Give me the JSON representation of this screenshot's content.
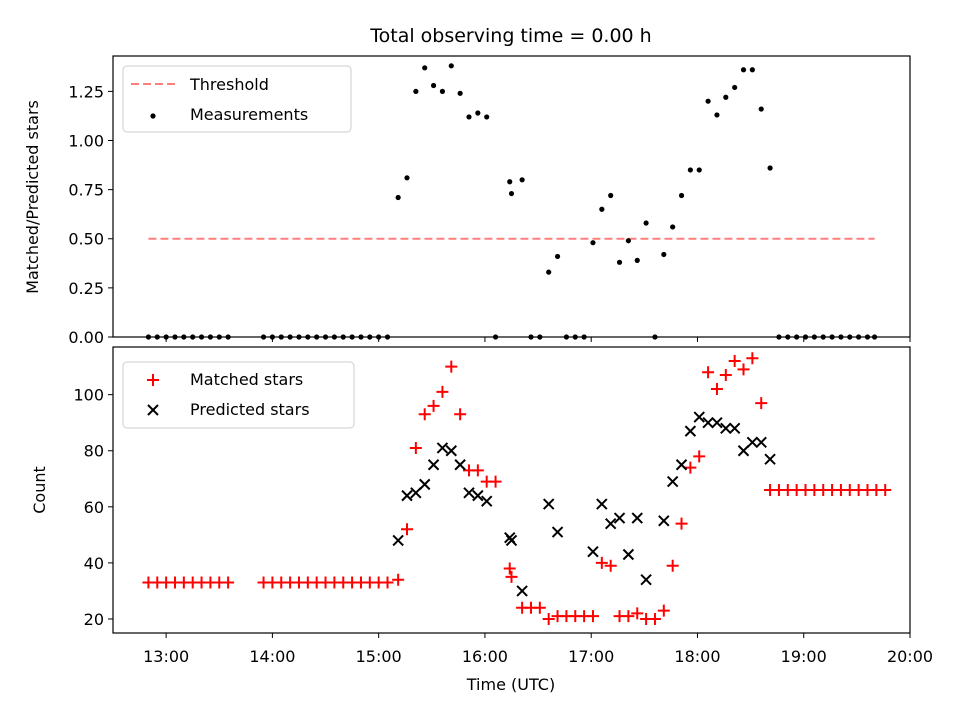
{
  "chart_data": [
    {
      "type": "scatter",
      "title": "Total observing time = 0.00 h",
      "xlabel": "",
      "ylabel": "Matched/Predicted stars",
      "ylim": [
        0,
        1.43
      ],
      "yticks": [
        "0.00",
        "0.25",
        "0.50",
        "0.75",
        "1.00",
        "1.25"
      ],
      "x_range": [
        "12:30",
        "20:00"
      ],
      "legend": {
        "placement": "top-left",
        "entries": [
          "Threshold",
          "Measurements"
        ]
      },
      "threshold": {
        "name": "Threshold",
        "value": 0.5,
        "x": [
          "12:50",
          "19:40"
        ],
        "color": "#ff7f7f",
        "style": "dashed"
      },
      "series": [
        {
          "name": "Measurements",
          "marker": "dot",
          "color": "#000000",
          "points": [
            [
              "12:50",
              0
            ],
            [
              "12:55",
              0
            ],
            [
              "13:00",
              0
            ],
            [
              "13:05",
              0
            ],
            [
              "13:10",
              0
            ],
            [
              "13:15",
              0
            ],
            [
              "13:20",
              0
            ],
            [
              "13:25",
              0
            ],
            [
              "13:30",
              0
            ],
            [
              "13:35",
              0
            ],
            [
              "13:55",
              0
            ],
            [
              "14:00",
              0
            ],
            [
              "14:05",
              0
            ],
            [
              "14:10",
              0
            ],
            [
              "14:15",
              0
            ],
            [
              "14:20",
              0
            ],
            [
              "14:25",
              0
            ],
            [
              "14:30",
              0
            ],
            [
              "14:35",
              0
            ],
            [
              "14:40",
              0
            ],
            [
              "14:45",
              0
            ],
            [
              "14:50",
              0
            ],
            [
              "14:55",
              0
            ],
            [
              "15:00",
              0
            ],
            [
              "15:05",
              0
            ],
            [
              "15:11",
              0.71
            ],
            [
              "15:16",
              0.81
            ],
            [
              "15:21",
              1.25
            ],
            [
              "15:26",
              1.37
            ],
            [
              "15:31",
              1.28
            ],
            [
              "15:36",
              1.25
            ],
            [
              "15:41",
              1.38
            ],
            [
              "15:46",
              1.24
            ],
            [
              "15:51",
              1.12
            ],
            [
              "15:56",
              1.14
            ],
            [
              "16:01",
              1.12
            ],
            [
              "16:06",
              0
            ],
            [
              "16:14",
              0.79
            ],
            [
              "16:15",
              0.73
            ],
            [
              "16:21",
              0.8
            ],
            [
              "16:26",
              0
            ],
            [
              "16:31",
              0
            ],
            [
              "16:36",
              0.33
            ],
            [
              "16:41",
              0.41
            ],
            [
              "16:46",
              0
            ],
            [
              "16:51",
              0
            ],
            [
              "16:56",
              0
            ],
            [
              "17:01",
              0.48
            ],
            [
              "17:06",
              0.65
            ],
            [
              "17:11",
              0.72
            ],
            [
              "17:16",
              0.38
            ],
            [
              "17:21",
              0.49
            ],
            [
              "17:26",
              0.39
            ],
            [
              "17:31",
              0.58
            ],
            [
              "17:36",
              0
            ],
            [
              "17:41",
              0.42
            ],
            [
              "17:46",
              0.56
            ],
            [
              "17:51",
              0.72
            ],
            [
              "17:56",
              0.85
            ],
            [
              "18:01",
              0.85
            ],
            [
              "18:06",
              1.2
            ],
            [
              "18:11",
              1.13
            ],
            [
              "18:16",
              1.22
            ],
            [
              "18:21",
              1.27
            ],
            [
              "18:26",
              1.36
            ],
            [
              "18:31",
              1.36
            ],
            [
              "18:36",
              1.16
            ],
            [
              "18:41",
              0.86
            ],
            [
              "18:46",
              0
            ],
            [
              "18:51",
              0
            ],
            [
              "18:56",
              0
            ],
            [
              "19:01",
              0
            ],
            [
              "19:06",
              0
            ],
            [
              "19:11",
              0
            ],
            [
              "19:16",
              0
            ],
            [
              "19:21",
              0
            ],
            [
              "19:26",
              0
            ],
            [
              "19:31",
              0
            ],
            [
              "19:36",
              0
            ],
            [
              "19:40",
              0
            ]
          ]
        }
      ]
    },
    {
      "type": "scatter",
      "title": "",
      "xlabel": "Time (UTC)",
      "ylabel": "Count",
      "ylim": [
        15,
        117
      ],
      "yticks": [
        "20",
        "40",
        "60",
        "80",
        "100"
      ],
      "x_range": [
        "12:30",
        "20:00"
      ],
      "xticks": [
        "13:00",
        "14:00",
        "15:00",
        "16:00",
        "17:00",
        "18:00",
        "19:00",
        "20:00"
      ],
      "legend": {
        "placement": "top-left",
        "entries": [
          "Matched stars",
          "Predicted stars"
        ]
      },
      "series": [
        {
          "name": "Matched stars",
          "marker": "plus",
          "color": "#ff0000",
          "points": [
            [
              "12:50",
              33
            ],
            [
              "12:55",
              33
            ],
            [
              "13:00",
              33
            ],
            [
              "13:05",
              33
            ],
            [
              "13:10",
              33
            ],
            [
              "13:15",
              33
            ],
            [
              "13:20",
              33
            ],
            [
              "13:25",
              33
            ],
            [
              "13:30",
              33
            ],
            [
              "13:35",
              33
            ],
            [
              "13:55",
              33
            ],
            [
              "14:00",
              33
            ],
            [
              "14:05",
              33
            ],
            [
              "14:10",
              33
            ],
            [
              "14:15",
              33
            ],
            [
              "14:20",
              33
            ],
            [
              "14:25",
              33
            ],
            [
              "14:30",
              33
            ],
            [
              "14:35",
              33
            ],
            [
              "14:40",
              33
            ],
            [
              "14:45",
              33
            ],
            [
              "14:50",
              33
            ],
            [
              "14:55",
              33
            ],
            [
              "15:00",
              33
            ],
            [
              "15:05",
              33
            ],
            [
              "15:11",
              34
            ],
            [
              "15:16",
              52
            ],
            [
              "15:21",
              81
            ],
            [
              "15:26",
              93
            ],
            [
              "15:31",
              96
            ],
            [
              "15:36",
              101
            ],
            [
              "15:41",
              110
            ],
            [
              "15:46",
              93
            ],
            [
              "15:51",
              73
            ],
            [
              "15:56",
              73
            ],
            [
              "16:01",
              69
            ],
            [
              "16:06",
              69
            ],
            [
              "16:14",
              38
            ],
            [
              "16:15",
              35
            ],
            [
              "16:21",
              24
            ],
            [
              "16:26",
              24
            ],
            [
              "16:31",
              24
            ],
            [
              "16:36",
              20
            ],
            [
              "16:41",
              21
            ],
            [
              "16:46",
              21
            ],
            [
              "16:51",
              21
            ],
            [
              "16:56",
              21
            ],
            [
              "17:01",
              21
            ],
            [
              "17:06",
              40
            ],
            [
              "17:11",
              39
            ],
            [
              "17:16",
              21
            ],
            [
              "17:21",
              21
            ],
            [
              "17:26",
              22
            ],
            [
              "17:31",
              20
            ],
            [
              "17:36",
              20
            ],
            [
              "17:41",
              23
            ],
            [
              "17:46",
              39
            ],
            [
              "17:51",
              54
            ],
            [
              "17:56",
              74
            ],
            [
              "18:01",
              78
            ],
            [
              "18:06",
              108
            ],
            [
              "18:11",
              102
            ],
            [
              "18:16",
              107
            ],
            [
              "18:21",
              112
            ],
            [
              "18:26",
              109
            ],
            [
              "18:31",
              113
            ],
            [
              "18:36",
              97
            ],
            [
              "18:41",
              66
            ],
            [
              "18:46",
              66
            ],
            [
              "18:51",
              66
            ],
            [
              "18:56",
              66
            ],
            [
              "19:01",
              66
            ],
            [
              "19:06",
              66
            ],
            [
              "19:11",
              66
            ],
            [
              "19:16",
              66
            ],
            [
              "19:21",
              66
            ],
            [
              "19:26",
              66
            ],
            [
              "19:31",
              66
            ],
            [
              "19:36",
              66
            ],
            [
              "19:41",
              66
            ],
            [
              "19:46",
              66
            ]
          ]
        },
        {
          "name": "Predicted stars",
          "marker": "x",
          "color": "#000000",
          "points": [
            [
              "15:11",
              48
            ],
            [
              "15:16",
              64
            ],
            [
              "15:21",
              65
            ],
            [
              "15:26",
              68
            ],
            [
              "15:31",
              75
            ],
            [
              "15:36",
              81
            ],
            [
              "15:41",
              80
            ],
            [
              "15:46",
              75
            ],
            [
              "15:51",
              65
            ],
            [
              "15:56",
              64
            ],
            [
              "16:01",
              62
            ],
            [
              "16:14",
              49
            ],
            [
              "16:15",
              48
            ],
            [
              "16:21",
              30
            ],
            [
              "16:36",
              61
            ],
            [
              "16:41",
              51
            ],
            [
              "17:01",
              44
            ],
            [
              "17:06",
              61
            ],
            [
              "17:11",
              54
            ],
            [
              "17:16",
              56
            ],
            [
              "17:21",
              43
            ],
            [
              "17:26",
              56
            ],
            [
              "17:31",
              34
            ],
            [
              "17:41",
              55
            ],
            [
              "17:46",
              69
            ],
            [
              "17:51",
              75
            ],
            [
              "17:56",
              87
            ],
            [
              "18:01",
              92
            ],
            [
              "18:06",
              90
            ],
            [
              "18:11",
              90
            ],
            [
              "18:16",
              88
            ],
            [
              "18:21",
              88
            ],
            [
              "18:26",
              80
            ],
            [
              "18:31",
              83
            ],
            [
              "18:36",
              83
            ],
            [
              "18:41",
              77
            ]
          ]
        }
      ]
    }
  ]
}
